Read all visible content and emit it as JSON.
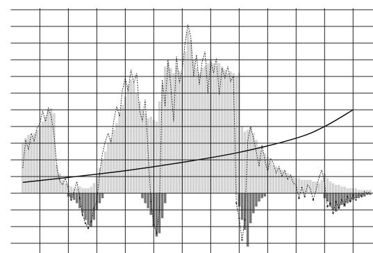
{
  "chart_data": {
    "type": "bar",
    "x": [
      4,
      5,
      6,
      7,
      8,
      9,
      10,
      11,
      12,
      13,
      14,
      15,
      16,
      17,
      18,
      19,
      20,
      21,
      22,
      23,
      24,
      25,
      26,
      27,
      28,
      29,
      30,
      31,
      32,
      33,
      34,
      35,
      36,
      37,
      38,
      39,
      40,
      41,
      42,
      43,
      44,
      45,
      46,
      47,
      48,
      49,
      50,
      51,
      52,
      53,
      54,
      55,
      56,
      57,
      58,
      59,
      60,
      61,
      62,
      63,
      64,
      65,
      66,
      67,
      68,
      69,
      70,
      71,
      72,
      73,
      74,
      75,
      76,
      77,
      78,
      79,
      80,
      81,
      82,
      83,
      84,
      85,
      86,
      87,
      88,
      89,
      90,
      91,
      92,
      93,
      94,
      95,
      96,
      97,
      98,
      99,
      100,
      101,
      102,
      103,
      104,
      105,
      106,
      107,
      108,
      109,
      110,
      111,
      112,
      113,
      114,
      115,
      116,
      117,
      118,
      119,
      120,
      121,
      122,
      123,
      124,
      125,
      126
    ],
    "series": [
      {
        "type": "bar",
        "color": "#d3d3d3",
        "values": [
          3.0,
          3.3,
          3.5,
          3.4,
          3.6,
          3.8,
          4.0,
          4.3,
          4.6,
          5.0,
          5.1,
          4.8,
          1.7,
          1.2,
          0.8,
          0.6,
          0.5,
          0.4,
          0.3,
          0.3,
          0.4,
          0.3,
          0.3,
          0.3,
          0.4,
          0.6,
          1.0,
          1.5,
          2.0,
          2.5,
          3.0,
          3.3,
          3.8,
          4.2,
          4.8,
          5.3,
          5.8,
          6.5,
          6.8,
          6.6,
          6.0,
          5.5,
          5.0,
          4.8,
          4.5,
          4.6,
          4.4,
          4.3,
          5.5,
          6.5,
          7.6,
          7.8,
          7.5,
          7.2,
          7.6,
          7.3,
          7.0,
          8.5,
          9.7,
          9.2,
          8.0,
          7.5,
          7.2,
          7.5,
          7.6,
          7.8,
          8.0,
          7.8,
          7.6,
          7.8,
          7.6,
          7.4,
          7.2,
          7.3,
          7.2,
          7.0,
          7.2,
          4.0,
          3.7,
          3.8,
          4.0,
          3.6,
          3.2,
          2.8,
          2.6,
          2.4,
          2.2,
          1.9,
          1.7,
          1.6,
          1.5,
          1.4,
          1.3,
          1.2,
          1.1,
          1.0,
          0.9,
          0.9,
          0.8,
          0.8,
          0.8,
          0.8,
          0.7,
          0.7,
          0.6,
          0.8,
          1.2,
          0.9,
          0.7,
          0.6,
          0.5,
          0.5,
          0.4,
          0.4,
          0.3,
          0.3,
          0.3,
          0.3,
          0.2,
          0.2,
          0.2,
          0.2,
          0.2
        ]
      },
      {
        "type": "bar",
        "color": "#777777",
        "values": [
          null,
          null,
          null,
          null,
          null,
          null,
          null,
          null,
          null,
          null,
          null,
          null,
          null,
          null,
          null,
          null,
          -0.2,
          -0.3,
          -0.4,
          -0.6,
          -0.9,
          -1.2,
          -1.6,
          -1.9,
          -2.0,
          -1.6,
          -1.0,
          -0.6,
          -0.3,
          null,
          null,
          null,
          null,
          null,
          null,
          null,
          null,
          null,
          null,
          null,
          null,
          null,
          -0.3,
          -0.6,
          -0.9,
          -1.3,
          -2.0,
          -2.6,
          -2.4,
          -1.5,
          -0.6,
          null,
          null,
          null,
          null,
          null,
          null,
          null,
          null,
          null,
          null,
          null,
          null,
          null,
          null,
          null,
          null,
          null,
          null,
          null,
          null,
          null,
          null,
          null,
          null,
          null,
          -0.8,
          -1.6,
          -2.2,
          -3.2,
          -1.8,
          -1.2,
          -0.8,
          -0.5,
          -0.3,
          -0.2,
          null,
          null,
          null,
          null,
          null,
          null,
          null,
          null,
          null,
          null,
          null,
          null,
          null,
          null,
          null,
          null,
          null,
          null,
          null,
          null,
          -0.3,
          -0.5,
          -0.8,
          -1.0,
          -1.1,
          -0.9,
          -0.7,
          -0.8,
          -0.6,
          -0.5,
          -0.4,
          -0.3,
          -0.3,
          -0.2,
          -0.2,
          -0.1,
          -0.1
        ]
      },
      {
        "type": "line",
        "color": "#222222",
        "style": "dashed",
        "markers": true,
        "values": [
          1.5,
          3.2,
          2.6,
          3.6,
          3.1,
          3.9,
          4.2,
          4.9,
          4.3,
          5.1,
          4.6,
          3.5,
          1.5,
          0.7,
          0.5,
          0.9,
          0.2,
          -0.4,
          0.1,
          0.7,
          -0.3,
          -1.3,
          -1.8,
          -2.1,
          -1.7,
          -0.9,
          -0.5,
          1.2,
          2.4,
          3.1,
          3.6,
          3.0,
          4.4,
          5.2,
          4.6,
          6.2,
          6.9,
          6.1,
          7.4,
          6.6,
          7.2,
          5.0,
          4.3,
          5.6,
          2.5,
          -0.5,
          -1.9,
          -2.4,
          -1.0,
          6.8,
          5.2,
          8.0,
          6.4,
          4.3,
          8.2,
          6.6,
          7.4,
          9.0,
          10.1,
          9.4,
          7.0,
          8.3,
          6.5,
          7.9,
          8.5,
          6.0,
          7.9,
          7.2,
          8.1,
          5.9,
          7.5,
          6.9,
          7.6,
          6.7,
          7.0,
          -0.6,
          -1.5,
          -2.8,
          -1.6,
          3.1,
          4.0,
          3.3,
          2.5,
          1.6,
          2.9,
          2.0,
          1.3,
          2.1,
          1.8,
          1.2,
          1.6,
          1.0,
          1.4,
          0.8,
          1.1,
          0.6,
          0.5,
          -0.3,
          0.4,
          -0.2,
          0.5,
          0.3,
          -0.4,
          0.2,
          0.9,
          1.4,
          0.6,
          -0.8,
          -0.6,
          -1.2,
          -0.5,
          -0.9,
          -0.4,
          -0.7,
          -0.2,
          -0.5,
          -0.1,
          -0.4,
          0.0,
          -0.2,
          0.1,
          0.0,
          0.1
        ]
      },
      {
        "type": "line",
        "color": "#111111",
        "style": "smooth",
        "x": [
          4,
          20,
          40,
          60,
          80,
          100,
          110,
          120
        ],
        "values": [
          0.65,
          0.95,
          1.35,
          1.85,
          2.45,
          3.3,
          4.0,
          5.0
        ]
      }
    ],
    "xlim": [
      -4,
      127
    ],
    "ylim": [
      -3.5,
      11.5
    ],
    "xticks": [
      10,
      20,
      30,
      40,
      50,
      60,
      70,
      80,
      90,
      100,
      110,
      120
    ],
    "yticks": [
      -3,
      -2,
      -1,
      0,
      1,
      2,
      3,
      4,
      5,
      6,
      7,
      8,
      9,
      10,
      11
    ],
    "grid": true
  }
}
